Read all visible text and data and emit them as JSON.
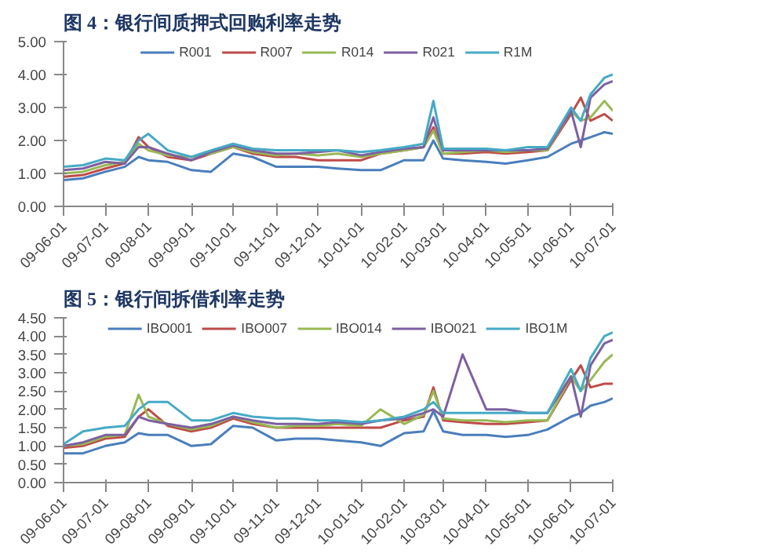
{
  "chart_data": [
    {
      "type": "line",
      "title": "图 4：银行间质押式回购利率走势",
      "x": [
        "2009-06-01",
        "2009-06-15",
        "2009-07-01",
        "2009-07-15",
        "2009-07-25",
        "2009-08-01",
        "2009-08-15",
        "2009-09-01",
        "2009-09-15",
        "2009-10-01",
        "2009-10-15",
        "2009-11-01",
        "2009-11-15",
        "2009-12-01",
        "2009-12-15",
        "2010-01-01",
        "2010-01-15",
        "2010-02-01",
        "2010-02-15",
        "2010-02-22",
        "2010-03-01",
        "2010-03-15",
        "2010-04-01",
        "2010-04-15",
        "2010-05-01",
        "2010-05-15",
        "2010-06-01",
        "2010-06-08",
        "2010-06-15",
        "2010-06-25",
        "2010-07-01"
      ],
      "series": [
        {
          "name": "R001",
          "color": "#4a7ebb",
          "values": [
            0.8,
            0.85,
            1.05,
            1.2,
            1.5,
            1.4,
            1.35,
            1.1,
            1.05,
            1.6,
            1.5,
            1.2,
            1.2,
            1.2,
            1.15,
            1.1,
            1.1,
            1.4,
            1.4,
            2.0,
            1.45,
            1.4,
            1.35,
            1.3,
            1.4,
            1.5,
            1.9,
            2.0,
            2.1,
            2.25,
            2.2
          ]
        },
        {
          "name": "R007",
          "color": "#be4b48",
          "values": [
            0.9,
            0.95,
            1.15,
            1.3,
            2.1,
            1.8,
            1.5,
            1.4,
            1.6,
            1.8,
            1.6,
            1.5,
            1.5,
            1.4,
            1.4,
            1.4,
            1.6,
            1.7,
            1.8,
            2.4,
            1.6,
            1.6,
            1.65,
            1.6,
            1.65,
            1.7,
            2.8,
            3.3,
            2.6,
            2.8,
            2.6
          ]
        },
        {
          "name": "R014",
          "color": "#98b954",
          "values": [
            1.0,
            1.05,
            1.25,
            1.35,
            1.9,
            1.7,
            1.55,
            1.5,
            1.6,
            1.8,
            1.65,
            1.55,
            1.6,
            1.55,
            1.6,
            1.5,
            1.6,
            1.7,
            1.8,
            2.3,
            1.6,
            1.65,
            1.7,
            1.65,
            1.7,
            1.7,
            2.9,
            2.6,
            2.7,
            3.2,
            2.9
          ]
        },
        {
          "name": "R021",
          "color": "#7d60a0",
          "values": [
            1.1,
            1.15,
            1.35,
            1.3,
            1.8,
            1.8,
            1.6,
            1.4,
            1.65,
            1.85,
            1.7,
            1.6,
            1.6,
            1.65,
            1.7,
            1.55,
            1.65,
            1.75,
            1.8,
            2.7,
            1.7,
            1.7,
            1.7,
            1.7,
            1.7,
            1.75,
            2.9,
            1.8,
            3.3,
            3.7,
            3.8
          ]
        },
        {
          "name": "R1M",
          "color": "#46aac5",
          "values": [
            1.2,
            1.25,
            1.45,
            1.4,
            2.0,
            2.2,
            1.7,
            1.5,
            1.7,
            1.9,
            1.75,
            1.7,
            1.7,
            1.7,
            1.7,
            1.65,
            1.7,
            1.8,
            1.9,
            3.2,
            1.75,
            1.75,
            1.75,
            1.7,
            1.8,
            1.8,
            3.0,
            2.6,
            3.4,
            3.9,
            4.0
          ]
        }
      ],
      "xlim": [
        "2009-06-01",
        "2010-07-01"
      ],
      "xticks": [
        {
          "value": "2009-06-01",
          "label": "09-06-01"
        },
        {
          "value": "2009-07-01",
          "label": "09-07-01"
        },
        {
          "value": "2009-08-01",
          "label": "09-08-01"
        },
        {
          "value": "2009-09-01",
          "label": "09-09-01"
        },
        {
          "value": "2009-10-01",
          "label": "09-10-01"
        },
        {
          "value": "2009-11-01",
          "label": "09-11-01"
        },
        {
          "value": "2009-12-01",
          "label": "09-12-01"
        },
        {
          "value": "2010-01-01",
          "label": "10-01-01"
        },
        {
          "value": "2010-02-01",
          "label": "10-02-01"
        },
        {
          "value": "2010-03-01",
          "label": "10-03-01"
        },
        {
          "value": "2010-04-01",
          "label": "10-04-01"
        },
        {
          "value": "2010-05-01",
          "label": "10-05-01"
        },
        {
          "value": "2010-06-01",
          "label": "10-06-01"
        },
        {
          "value": "2010-07-01",
          "label": "10-07-01"
        }
      ],
      "ylim": [
        0,
        5
      ],
      "yticks": [
        {
          "value": 0,
          "label": "0.00"
        },
        {
          "value": 1,
          "label": "1.00"
        },
        {
          "value": 2,
          "label": "2.00"
        },
        {
          "value": 3,
          "label": "3.00"
        },
        {
          "value": 4,
          "label": "4.00"
        },
        {
          "value": 5,
          "label": "5.00"
        }
      ],
      "grid": false,
      "legend": "top",
      "marker": "none",
      "line_style": "solid"
    },
    {
      "type": "line",
      "title": "图 5：银行间拆借利率走势",
      "x": [
        "2009-06-01",
        "2009-06-15",
        "2009-07-01",
        "2009-07-15",
        "2009-07-25",
        "2009-08-01",
        "2009-08-15",
        "2009-09-01",
        "2009-09-15",
        "2009-10-01",
        "2009-10-15",
        "2009-11-01",
        "2009-11-15",
        "2009-12-01",
        "2009-12-15",
        "2010-01-01",
        "2010-01-15",
        "2010-02-01",
        "2010-02-15",
        "2010-02-22",
        "2010-03-01",
        "2010-03-15",
        "2010-04-01",
        "2010-04-15",
        "2010-05-01",
        "2010-05-15",
        "2010-06-01",
        "2010-06-08",
        "2010-06-15",
        "2010-06-25",
        "2010-07-01"
      ],
      "series": [
        {
          "name": "IBO001",
          "color": "#4a7ebb",
          "values": [
            0.8,
            0.8,
            1.0,
            1.1,
            1.35,
            1.3,
            1.3,
            1.0,
            1.05,
            1.55,
            1.5,
            1.15,
            1.2,
            1.2,
            1.15,
            1.1,
            1.0,
            1.35,
            1.4,
            1.95,
            1.4,
            1.3,
            1.3,
            1.25,
            1.3,
            1.45,
            1.8,
            1.9,
            2.1,
            2.2,
            2.3
          ]
        },
        {
          "name": "IBO007",
          "color": "#be4b48",
          "values": [
            0.95,
            1.0,
            1.2,
            1.25,
            1.8,
            2.0,
            1.55,
            1.4,
            1.5,
            1.75,
            1.6,
            1.5,
            1.5,
            1.5,
            1.5,
            1.5,
            1.5,
            1.7,
            1.8,
            2.6,
            1.7,
            1.65,
            1.6,
            1.6,
            1.65,
            1.7,
            2.8,
            3.2,
            2.6,
            2.7,
            2.7
          ]
        },
        {
          "name": "IBO014",
          "color": "#98b954",
          "values": [
            1.0,
            1.05,
            1.25,
            1.3,
            2.4,
            1.8,
            1.6,
            1.45,
            1.55,
            1.8,
            1.65,
            1.5,
            1.55,
            1.55,
            1.6,
            1.55,
            2.0,
            1.6,
            1.85,
            2.5,
            1.75,
            1.7,
            1.7,
            1.65,
            1.7,
            1.7,
            2.9,
            2.5,
            2.8,
            3.3,
            3.5
          ]
        },
        {
          "name": "IBO021",
          "color": "#7d60a0",
          "values": [
            1.0,
            1.1,
            1.3,
            1.3,
            1.8,
            1.7,
            1.6,
            1.5,
            1.6,
            1.8,
            1.7,
            1.6,
            1.6,
            1.6,
            1.65,
            1.6,
            1.7,
            1.75,
            1.9,
            2.0,
            1.8,
            3.5,
            2.0,
            2.0,
            1.9,
            1.9,
            2.9,
            1.8,
            3.2,
            3.8,
            3.9
          ]
        },
        {
          "name": "IBO1M",
          "color": "#46aac5",
          "values": [
            1.05,
            1.4,
            1.5,
            1.55,
            2.0,
            2.2,
            2.2,
            1.7,
            1.7,
            1.9,
            1.8,
            1.75,
            1.75,
            1.7,
            1.7,
            1.65,
            1.7,
            1.8,
            2.0,
            2.2,
            1.9,
            1.9,
            1.9,
            1.9,
            1.9,
            1.9,
            3.1,
            2.5,
            3.4,
            4.0,
            4.1
          ]
        }
      ],
      "xlim": [
        "2009-06-01",
        "2010-07-01"
      ],
      "xticks": [
        {
          "value": "2009-06-01",
          "label": "09-06-01"
        },
        {
          "value": "2009-07-01",
          "label": "09-07-01"
        },
        {
          "value": "2009-08-01",
          "label": "09-08-01"
        },
        {
          "value": "2009-09-01",
          "label": "09-09-01"
        },
        {
          "value": "2009-10-01",
          "label": "09-10-01"
        },
        {
          "value": "2009-11-01",
          "label": "09-11-01"
        },
        {
          "value": "2009-12-01",
          "label": "09-12-01"
        },
        {
          "value": "2010-01-01",
          "label": "10-01-01"
        },
        {
          "value": "2010-02-01",
          "label": "10-02-01"
        },
        {
          "value": "2010-03-01",
          "label": "10-03-01"
        },
        {
          "value": "2010-04-01",
          "label": "10-04-01"
        },
        {
          "value": "2010-05-01",
          "label": "10-05-01"
        },
        {
          "value": "2010-06-01",
          "label": "10-06-01"
        },
        {
          "value": "2010-07-01",
          "label": "10-07-01"
        }
      ],
      "ylim": [
        0,
        4.5
      ],
      "yticks": [
        {
          "value": 0,
          "label": "0.00"
        },
        {
          "value": 0.5,
          "label": "0.50"
        },
        {
          "value": 1,
          "label": "1.00"
        },
        {
          "value": 1.5,
          "label": "1.50"
        },
        {
          "value": 2,
          "label": "2.00"
        },
        {
          "value": 2.5,
          "label": "2.50"
        },
        {
          "value": 3,
          "label": "3.00"
        },
        {
          "value": 3.5,
          "label": "3.50"
        },
        {
          "value": 4,
          "label": "4.00"
        },
        {
          "value": 4.5,
          "label": "4.50"
        }
      ],
      "grid": false,
      "legend": "top",
      "marker": "none",
      "line_style": "solid"
    }
  ]
}
